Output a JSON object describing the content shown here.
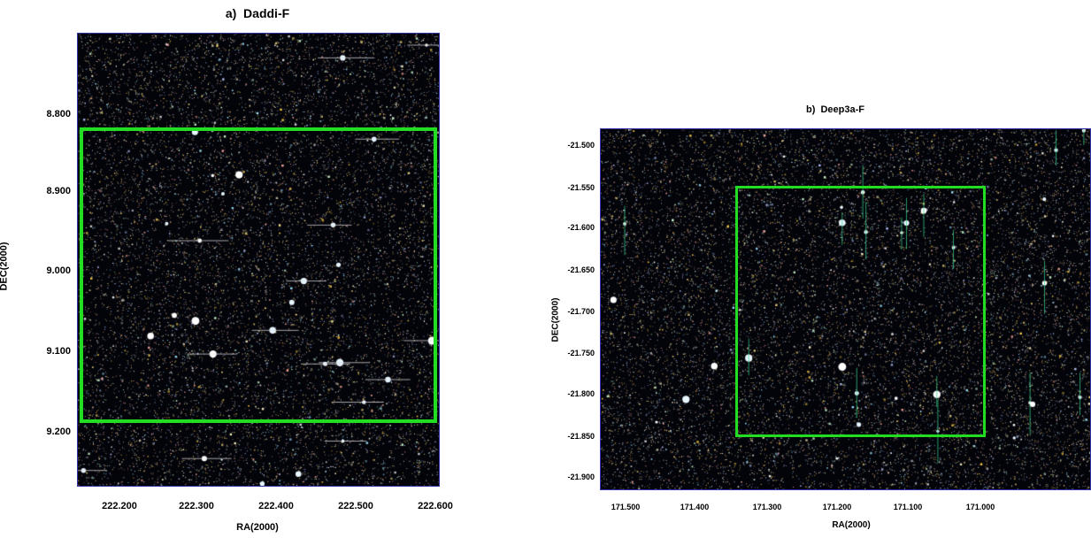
{
  "panels": [
    {
      "id": "a",
      "title": "a)  Daddi-F",
      "x_label": "RA(2000)",
      "y_label": "DEC(2000)",
      "x_ticks": [
        "222.200",
        "222.300",
        "222.400",
        "222.500",
        "222.600"
      ],
      "y_ticks": [
        "8.800",
        "8.900",
        "9.000",
        "9.100",
        "9.200"
      ],
      "x_range": [
        222.16,
        222.6
      ],
      "y_range": [
        8.72,
        9.27
      ],
      "highlight_box": {
        "ra": [
          222.16,
          222.6
        ],
        "dec": [
          8.82,
          9.185
        ],
        "color": "#22dd22"
      },
      "frame_color": "#3333aa"
    },
    {
      "id": "b",
      "title": "b)  Deep3a-F",
      "x_label": "RA(2000)",
      "y_label": "DEC(2000)",
      "x_ticks": [
        "171.500",
        "171.400",
        "171.300",
        "171.200",
        "171.100",
        "171.000"
      ],
      "y_ticks": [
        "-21.500",
        "-21.550",
        "-21.600",
        "-21.650",
        "-21.700",
        "-21.750",
        "-21.800",
        "-21.850",
        "-21.900"
      ],
      "x_range": [
        171.5,
        170.975
      ],
      "y_range": [
        -21.485,
        -21.915
      ],
      "highlight_box": {
        "ra": [
          171.365,
          171.045
        ],
        "dec": [
          -21.548,
          -21.848
        ],
        "color": "#22dd22"
      },
      "frame_color": "#3333aa"
    }
  ]
}
